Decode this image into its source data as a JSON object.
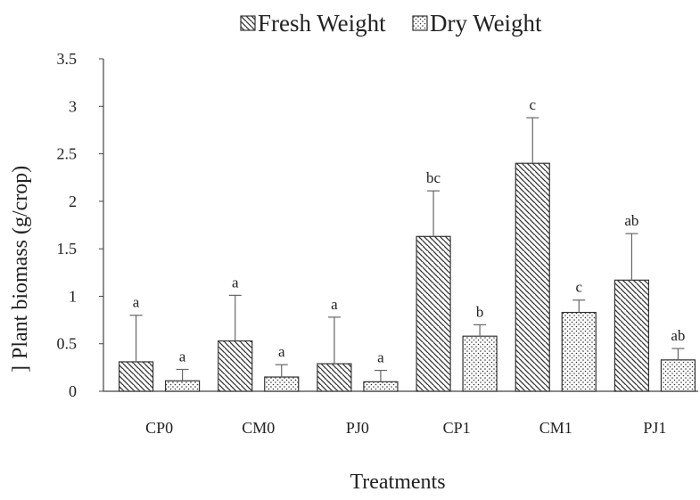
{
  "chart_data": {
    "type": "bar",
    "title": "",
    "xlabel": "Treatments",
    "ylabel": "Plant biomass (g/crop)",
    "ylabel_prefix": "]",
    "ylim": [
      0,
      3.5
    ],
    "yticks": [
      "0",
      "0.5",
      "1",
      "1.5",
      "2",
      "2.5",
      "3",
      "3.5"
    ],
    "grid": false,
    "legend_position": "top",
    "categories": [
      "CP0",
      "CM0",
      "PJ0",
      "CP1",
      "CM1",
      "PJ1"
    ],
    "series": [
      {
        "name": "Fresh Weight",
        "pattern": "diagonal-hatch",
        "values": [
          0.31,
          0.53,
          0.29,
          1.63,
          2.4,
          1.17
        ],
        "error": [
          0.49,
          0.48,
          0.49,
          0.48,
          0.48,
          0.49
        ],
        "significance": [
          "a",
          "a",
          "a",
          "bc",
          "c",
          "ab"
        ]
      },
      {
        "name": "Dry Weight",
        "pattern": "dotted",
        "values": [
          0.11,
          0.15,
          0.1,
          0.58,
          0.83,
          0.33
        ],
        "error": [
          0.12,
          0.13,
          0.12,
          0.12,
          0.13,
          0.12
        ],
        "significance": [
          "a",
          "a",
          "a",
          "b",
          "c",
          "ab"
        ]
      }
    ]
  }
}
